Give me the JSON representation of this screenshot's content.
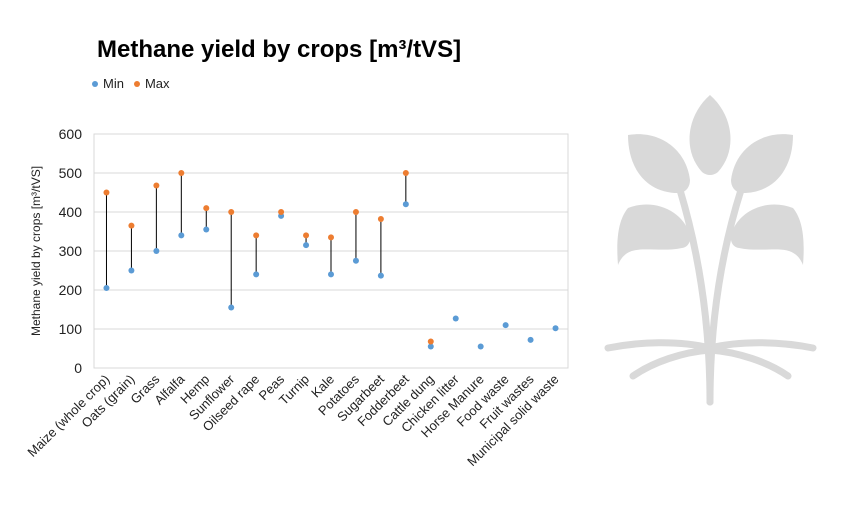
{
  "chart_data": {
    "type": "scatter",
    "title": "Methane yield by crops [m³/tVS]",
    "ylabel": "Methane yield by crops [m³/tVS]",
    "xlabel": "",
    "ylim": [
      0,
      600
    ],
    "yticks": [
      "0",
      "100",
      "200",
      "300",
      "400",
      "500",
      "600"
    ],
    "grid": true,
    "legend_position": "top-left",
    "categories": [
      "Maize (whole crop)",
      "Oats (grain)",
      "Grass",
      "Alfalfa",
      "Hemp",
      "Sunflower",
      "Oilseed rape",
      "Peas",
      "Turnip",
      "Kale",
      "Potatoes",
      "Sugarbeet",
      "Fodderbeet",
      "Cattle dung",
      "Chicken litter",
      "Horse Manure",
      "Food waste",
      "Fruit wastes",
      "Municipal solid waste"
    ],
    "series": [
      {
        "name": "Min",
        "color": "#5b9bd5",
        "values": [
          205,
          250,
          300,
          340,
          355,
          155,
          240,
          390,
          315,
          240,
          275,
          237,
          420,
          55,
          127,
          55,
          110,
          72,
          102
        ]
      },
      {
        "name": "Max",
        "color": "#ed7d31",
        "values": [
          450,
          365,
          468,
          500,
          410,
          400,
          340,
          400,
          340,
          335,
          400,
          382,
          500,
          68,
          null,
          null,
          null,
          null,
          null
        ]
      }
    ]
  },
  "decor": {
    "logo": "leaf-tree-logo",
    "logo_color": "#d9d9d9"
  }
}
